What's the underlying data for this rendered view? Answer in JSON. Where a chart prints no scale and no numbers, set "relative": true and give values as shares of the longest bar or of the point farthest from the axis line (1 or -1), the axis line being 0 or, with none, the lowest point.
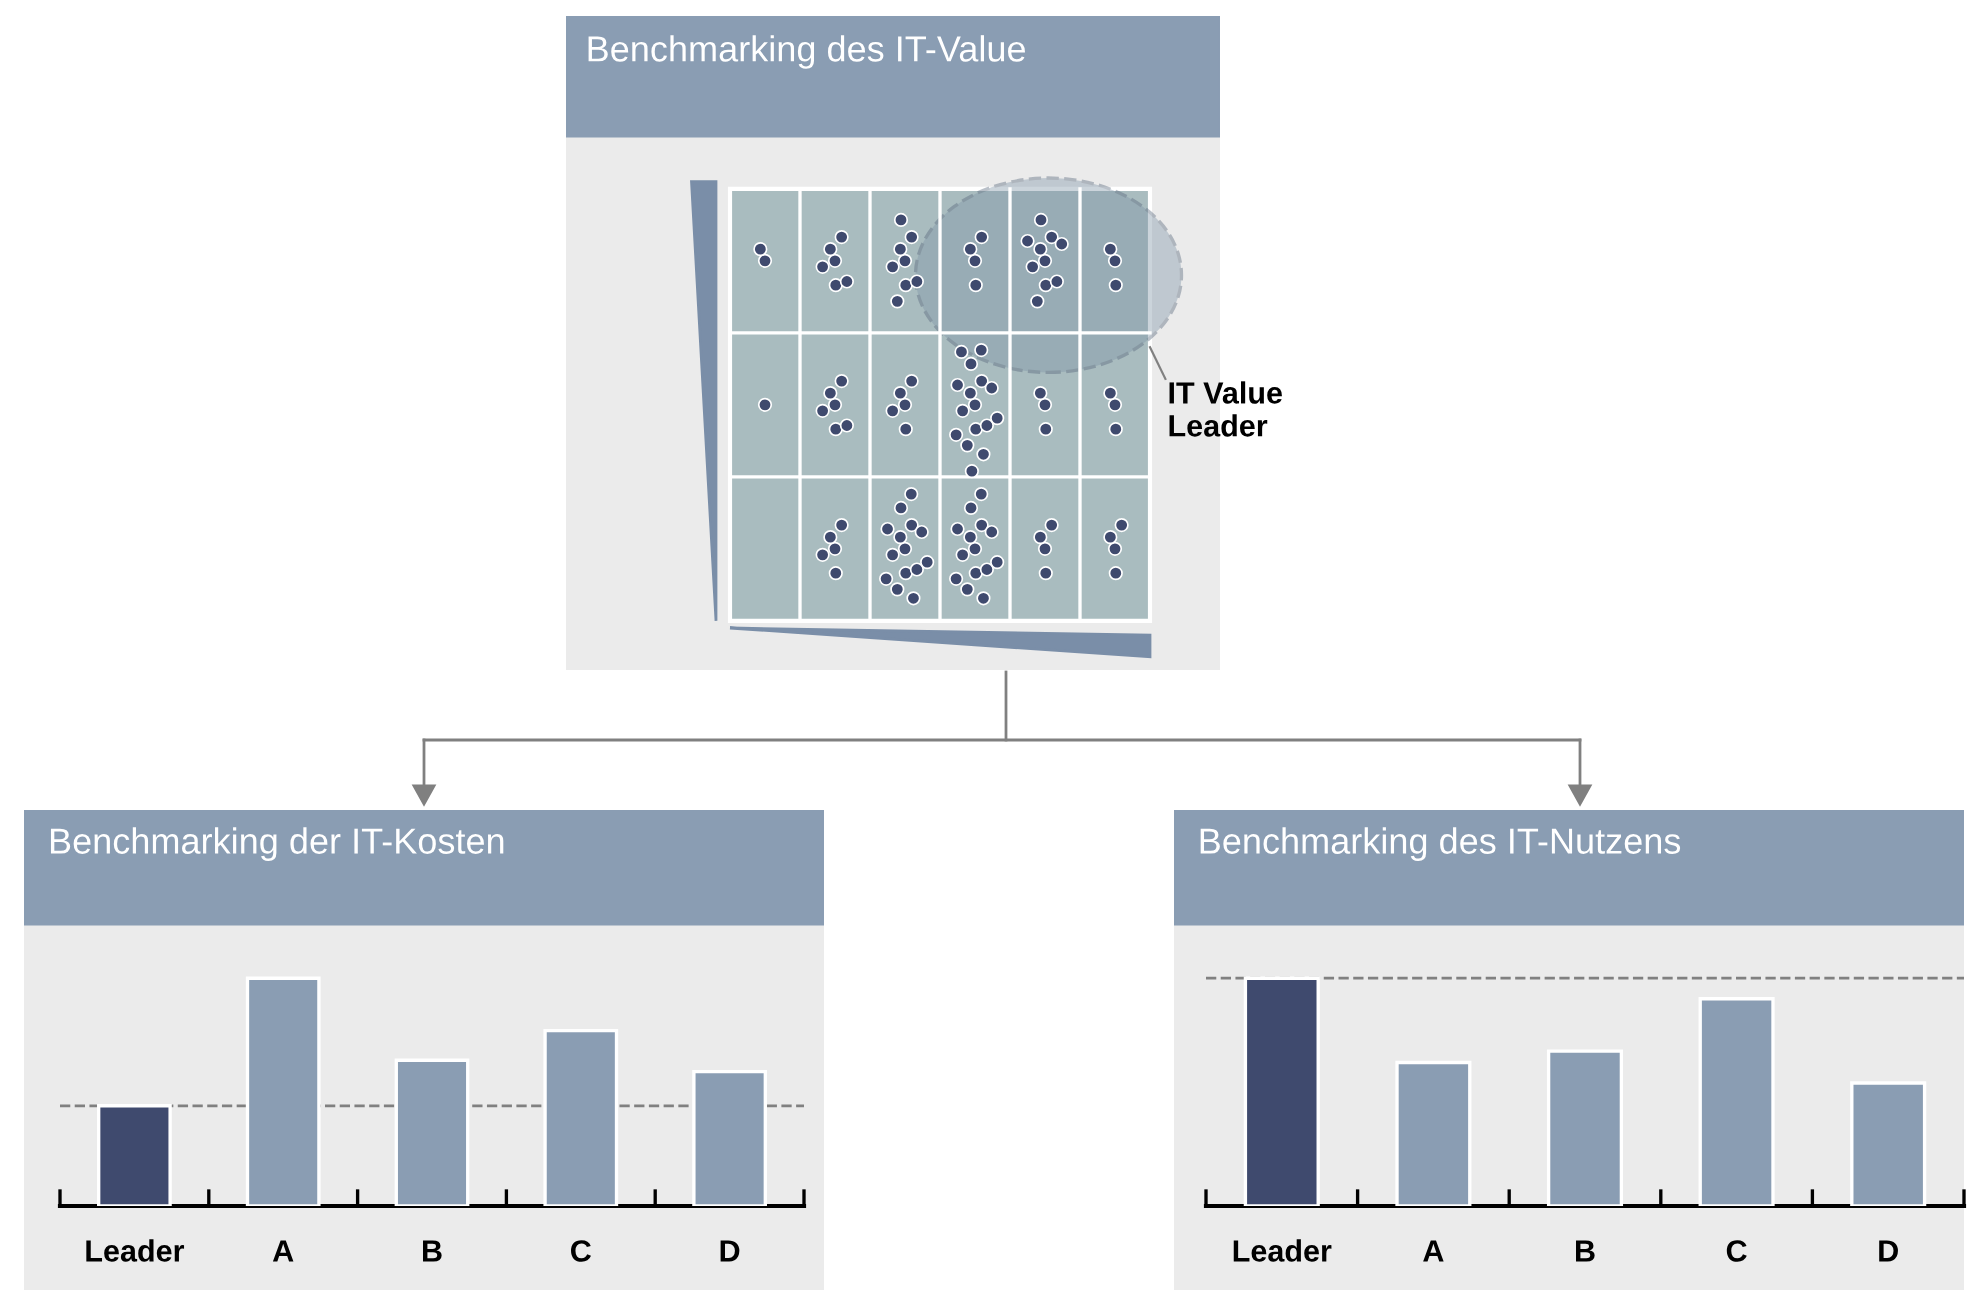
{
  "chart_data": [
    {
      "type": "other",
      "title": "Benchmarking des IT-Value",
      "annotations": [
        "IT Value\nLeader"
      ]
    },
    {
      "type": "bar",
      "title": "Benchmarking der IT-Kosten",
      "relative": true,
      "categories": [
        "Leader",
        "A",
        "B",
        "C",
        "D"
      ],
      "values": [
        0.44,
        1,
        0.64,
        0.77,
        0.59
      ],
      "colors": [
        "#3f4a6e",
        "#8a9db3",
        "#8a9db3",
        "#8a9db3",
        "#8a9db3"
      ],
      "ref_lines": [
        {
          "axis": "y",
          "value": 0.44,
          "color": "#808080",
          "line_style": "dashed"
        }
      ]
    },
    {
      "type": "bar",
      "title": "Benchmarking des IT-Nutzens",
      "relative": true,
      "categories": [
        "Leader",
        "A",
        "B",
        "C",
        "D"
      ],
      "values": [
        1,
        0.63,
        0.68,
        0.91,
        0.54
      ],
      "colors": [
        "#3f4a6e",
        "#8a9db3",
        "#8a9db3",
        "#8a9db3",
        "#8a9db3"
      ],
      "ref_lines": [
        {
          "axis": "y",
          "value": 1,
          "color": "#808080",
          "line_style": "dashed"
        }
      ]
    }
  ]
}
